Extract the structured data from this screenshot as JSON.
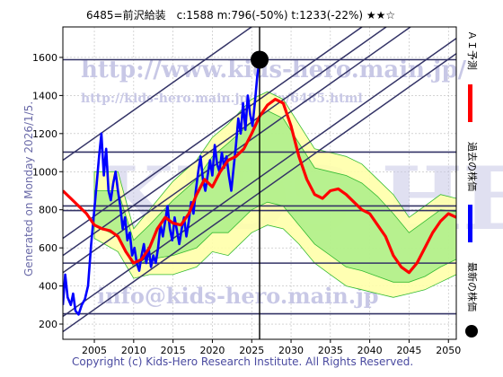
{
  "header": {
    "title": "6485=前沢給装　c:1588  m:796(-50%)  t:1233(-22%)  ★★☆"
  },
  "side_label": "Generated on Monday 2026/1/5.",
  "copyright": "Copyright (c) Kids-Hero Research Institute. All Rights Reserved.",
  "watermarks": {
    "url": "http://www.kids-hero.main.jp/",
    "url2": "http://kids-hero.main.jp/code/6485.html",
    "mail": "info@kids-hero.main.jp",
    "big": "KIDS HERO"
  },
  "legend": [
    {
      "label": "ＡＩ予測",
      "color": "#ff0000"
    },
    {
      "label": "過去の株価",
      "color": "#0000ff"
    },
    {
      "label": "最新の株価",
      "color": "#000000"
    }
  ],
  "colors": {
    "forecast": "#ff0000",
    "history": "#0000ff",
    "band_outer": "#ffffaa",
    "band_inner": "#aaee88",
    "band_line": "#33bb33",
    "channel": "#333366",
    "hline": "#333366",
    "grid": "#bbbbbb"
  },
  "chart_data": {
    "type": "line",
    "xlim": [
      2001,
      2051
    ],
    "ylim": [
      120,
      1760
    ],
    "xticks": [
      2005,
      2010,
      2015,
      2020,
      2025,
      2030,
      2035,
      2040,
      2045,
      2050
    ],
    "yticks": [
      200,
      400,
      600,
      800,
      1000,
      1200,
      1400,
      1600
    ],
    "latest": {
      "x": 2026.0,
      "y": 1588
    },
    "hlines": [
      254,
      520,
      796,
      820,
      1103,
      1588
    ],
    "channel_lines": [
      {
        "p1": [
          2001,
          160
        ],
        "p2": [
          2051,
          1620
        ]
      },
      {
        "p1": [
          2001,
          240
        ],
        "p2": [
          2051,
          1700
        ]
      },
      {
        "p1": [
          2001,
          470
        ],
        "p2": [
          2051,
          1930
        ]
      },
      {
        "p1": [
          2001,
          560
        ],
        "p2": [
          2051,
          2020
        ]
      },
      {
        "p1": [
          2001,
          650
        ],
        "p2": [
          2051,
          2110
        ]
      },
      {
        "p1": [
          2001,
          1060
        ],
        "p2": [
          2051,
          2520
        ]
      }
    ],
    "history": [
      [
        2001.0,
        300
      ],
      [
        2001.3,
        460
      ],
      [
        2001.6,
        340
      ],
      [
        2002.0,
        300
      ],
      [
        2002.3,
        360
      ],
      [
        2002.6,
        270
      ],
      [
        2003.0,
        250
      ],
      [
        2003.4,
        300
      ],
      [
        2003.8,
        330
      ],
      [
        2004.2,
        400
      ],
      [
        2004.6,
        620
      ],
      [
        2005.0,
        800
      ],
      [
        2005.3,
        940
      ],
      [
        2005.6,
        1080
      ],
      [
        2005.9,
        1200
      ],
      [
        2006.2,
        980
      ],
      [
        2006.5,
        1120
      ],
      [
        2006.8,
        900
      ],
      [
        2007.1,
        850
      ],
      [
        2007.4,
        940
      ],
      [
        2007.7,
        1000
      ],
      [
        2008.0,
        900
      ],
      [
        2008.3,
        820
      ],
      [
        2008.6,
        700
      ],
      [
        2008.9,
        760
      ],
      [
        2009.2,
        640
      ],
      [
        2009.5,
        680
      ],
      [
        2009.8,
        560
      ],
      [
        2010.1,
        600
      ],
      [
        2010.4,
        520
      ],
      [
        2010.7,
        480
      ],
      [
        2011.0,
        560
      ],
      [
        2011.3,
        620
      ],
      [
        2011.6,
        520
      ],
      [
        2011.9,
        600
      ],
      [
        2012.2,
        500
      ],
      [
        2012.5,
        560
      ],
      [
        2012.8,
        520
      ],
      [
        2013.1,
        600
      ],
      [
        2013.4,
        720
      ],
      [
        2013.7,
        660
      ],
      [
        2014.0,
        740
      ],
      [
        2014.3,
        820
      ],
      [
        2014.6,
        700
      ],
      [
        2014.9,
        640
      ],
      [
        2015.2,
        760
      ],
      [
        2015.5,
        690
      ],
      [
        2015.8,
        620
      ],
      [
        2016.1,
        700
      ],
      [
        2016.4,
        760
      ],
      [
        2016.7,
        660
      ],
      [
        2017.0,
        740
      ],
      [
        2017.3,
        840
      ],
      [
        2017.6,
        780
      ],
      [
        2017.9,
        900
      ],
      [
        2018.2,
        1000
      ],
      [
        2018.5,
        1080
      ],
      [
        2018.8,
        960
      ],
      [
        2019.1,
        900
      ],
      [
        2019.4,
        980
      ],
      [
        2019.7,
        1060
      ],
      [
        2020.0,
        980
      ],
      [
        2020.3,
        1140
      ],
      [
        2020.6,
        1040
      ],
      [
        2020.9,
        1000
      ],
      [
        2021.2,
        1100
      ],
      [
        2021.5,
        1020
      ],
      [
        2021.8,
        1080
      ],
      [
        2022.1,
        980
      ],
      [
        2022.4,
        900
      ],
      [
        2022.7,
        1020
      ],
      [
        2023.0,
        1140
      ],
      [
        2023.3,
        1280
      ],
      [
        2023.6,
        1200
      ],
      [
        2023.9,
        1360
      ],
      [
        2024.2,
        1220
      ],
      [
        2024.5,
        1400
      ],
      [
        2024.8,
        1300
      ],
      [
        2025.1,
        1240
      ],
      [
        2025.4,
        1360
      ],
      [
        2025.7,
        1500
      ],
      [
        2026.0,
        1588
      ]
    ],
    "forecast": [
      [
        2001.0,
        900
      ],
      [
        2002.0,
        860
      ],
      [
        2003.0,
        820
      ],
      [
        2004.0,
        780
      ],
      [
        2005.0,
        720
      ],
      [
        2006.0,
        700
      ],
      [
        2007.0,
        690
      ],
      [
        2008.0,
        660
      ],
      [
        2009.0,
        580
      ],
      [
        2010.0,
        520
      ],
      [
        2011.0,
        540
      ],
      [
        2012.0,
        600
      ],
      [
        2013.0,
        700
      ],
      [
        2014.0,
        760
      ],
      [
        2015.0,
        730
      ],
      [
        2016.0,
        720
      ],
      [
        2017.0,
        780
      ],
      [
        2018.0,
        880
      ],
      [
        2019.0,
        960
      ],
      [
        2020.0,
        920
      ],
      [
        2021.0,
        1000
      ],
      [
        2022.0,
        1060
      ],
      [
        2023.0,
        1080
      ],
      [
        2024.0,
        1120
      ],
      [
        2025.0,
        1200
      ],
      [
        2026.0,
        1290
      ],
      [
        2027.0,
        1350
      ],
      [
        2028.0,
        1380
      ],
      [
        2029.0,
        1360
      ],
      [
        2030.0,
        1240
      ],
      [
        2031.0,
        1080
      ],
      [
        2032.0,
        960
      ],
      [
        2033.0,
        880
      ],
      [
        2034.0,
        860
      ],
      [
        2035.0,
        900
      ],
      [
        2036.0,
        910
      ],
      [
        2037.0,
        880
      ],
      [
        2038.0,
        840
      ],
      [
        2039.0,
        800
      ],
      [
        2040.0,
        780
      ],
      [
        2041.0,
        720
      ],
      [
        2042.0,
        660
      ],
      [
        2043.0,
        560
      ],
      [
        2044.0,
        500
      ],
      [
        2045.0,
        470
      ],
      [
        2046.0,
        520
      ],
      [
        2047.0,
        600
      ],
      [
        2048.0,
        680
      ],
      [
        2049.0,
        740
      ],
      [
        2050.0,
        780
      ],
      [
        2051.0,
        760
      ]
    ],
    "band_outer_upper": [
      [
        2005,
        1000
      ],
      [
        2008,
        1000
      ],
      [
        2010,
        700
      ],
      [
        2012,
        800
      ],
      [
        2015,
        950
      ],
      [
        2018,
        1060
      ],
      [
        2020,
        1180
      ],
      [
        2022,
        1250
      ],
      [
        2025,
        1380
      ],
      [
        2027,
        1420
      ],
      [
        2029,
        1380
      ],
      [
        2031,
        1250
      ],
      [
        2033,
        1120
      ],
      [
        2035,
        1100
      ],
      [
        2037,
        1080
      ],
      [
        2039,
        1040
      ],
      [
        2041,
        960
      ],
      [
        2043,
        880
      ],
      [
        2045,
        760
      ],
      [
        2047,
        820
      ],
      [
        2049,
        880
      ],
      [
        2051,
        860
      ]
    ],
    "band_outer_lower": [
      [
        2005,
        650
      ],
      [
        2008,
        580
      ],
      [
        2010,
        440
      ],
      [
        2012,
        460
      ],
      [
        2015,
        460
      ],
      [
        2018,
        500
      ],
      [
        2020,
        580
      ],
      [
        2022,
        560
      ],
      [
        2025,
        680
      ],
      [
        2027,
        720
      ],
      [
        2029,
        700
      ],
      [
        2031,
        620
      ],
      [
        2033,
        520
      ],
      [
        2035,
        460
      ],
      [
        2037,
        400
      ],
      [
        2039,
        380
      ],
      [
        2041,
        360
      ],
      [
        2043,
        340
      ],
      [
        2045,
        360
      ],
      [
        2047,
        380
      ],
      [
        2049,
        420
      ],
      [
        2051,
        460
      ]
    ],
    "band_inner_upper": [
      [
        2005,
        900
      ],
      [
        2008,
        900
      ],
      [
        2010,
        640
      ],
      [
        2012,
        720
      ],
      [
        2015,
        850
      ],
      [
        2018,
        960
      ],
      [
        2020,
        1080
      ],
      [
        2022,
        1150
      ],
      [
        2025,
        1260
      ],
      [
        2027,
        1320
      ],
      [
        2029,
        1280
      ],
      [
        2031,
        1150
      ],
      [
        2033,
        1020
      ],
      [
        2035,
        1000
      ],
      [
        2037,
        980
      ],
      [
        2039,
        940
      ],
      [
        2041,
        870
      ],
      [
        2043,
        780
      ],
      [
        2045,
        680
      ],
      [
        2047,
        740
      ],
      [
        2049,
        800
      ],
      [
        2051,
        790
      ]
    ],
    "band_inner_lower": [
      [
        2005,
        720
      ],
      [
        2008,
        660
      ],
      [
        2010,
        500
      ],
      [
        2012,
        540
      ],
      [
        2015,
        560
      ],
      [
        2018,
        600
      ],
      [
        2020,
        680
      ],
      [
        2022,
        680
      ],
      [
        2025,
        800
      ],
      [
        2027,
        840
      ],
      [
        2029,
        820
      ],
      [
        2031,
        720
      ],
      [
        2033,
        620
      ],
      [
        2035,
        560
      ],
      [
        2037,
        500
      ],
      [
        2039,
        480
      ],
      [
        2041,
        450
      ],
      [
        2043,
        420
      ],
      [
        2045,
        420
      ],
      [
        2047,
        450
      ],
      [
        2049,
        500
      ],
      [
        2051,
        540
      ]
    ]
  }
}
